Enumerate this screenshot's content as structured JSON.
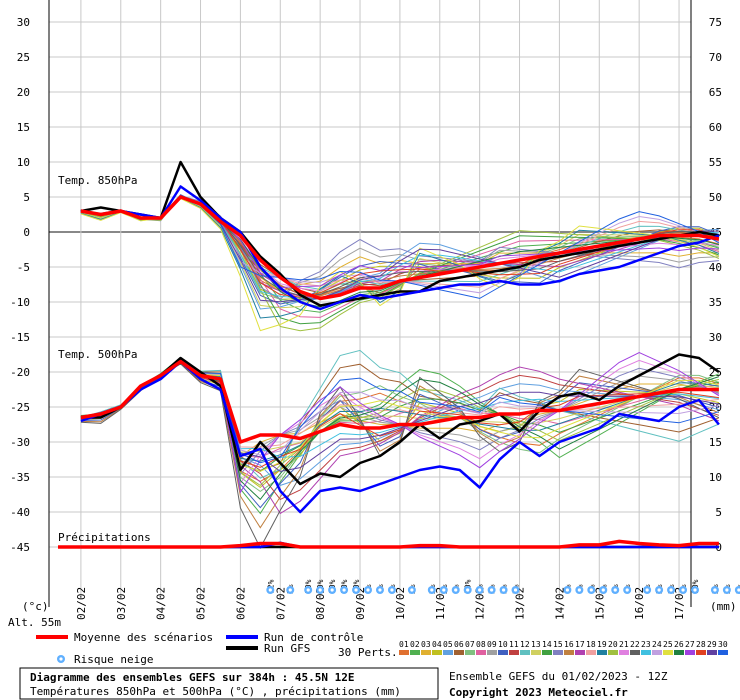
{
  "chart_data": {
    "type": "line",
    "x": [
      "02/02",
      "03/02",
      "04/02",
      "05/02",
      "06/02",
      "07/02",
      "08/02",
      "09/02",
      "10/02",
      "11/02",
      "12/02",
      "13/02",
      "14/02",
      "15/02",
      "16/02",
      "17/02"
    ],
    "xlabel": "",
    "y_left_ticks": [
      30,
      25,
      20,
      15,
      10,
      5,
      0,
      -5,
      -10,
      -15,
      -20,
      -25,
      -30,
      -35,
      -40,
      -45
    ],
    "y_right_ticks": [
      75,
      70,
      65,
      60,
      55,
      50,
      45,
      40,
      35,
      30,
      25,
      20,
      15,
      10,
      5,
      0
    ],
    "left_unit": "(°c)",
    "right_unit": "(mm)",
    "altitude": "Alt. 55m",
    "ylim": [
      -45,
      30
    ],
    "ylim_right": [
      0,
      75
    ],
    "annotations": {
      "t850": "Temp. 850hPa",
      "t500": "Temp. 500hPa",
      "precip": "Précipitations"
    },
    "t850": {
      "x": [
        0,
        0.5,
        1,
        1.5,
        2,
        2.5,
        3,
        3.5,
        4,
        4.5,
        5,
        5.5,
        6,
        6.5,
        7,
        7.5,
        8,
        8.5,
        9,
        9.5,
        10,
        10.5,
        11,
        11.5,
        12,
        12.5,
        13,
        13.5,
        14,
        14.5,
        15,
        15.5,
        16
      ],
      "mean": [
        3.0,
        2.5,
        3.0,
        2.0,
        2.0,
        5.0,
        4.0,
        1.5,
        -0.5,
        -4.0,
        -6.5,
        -8.5,
        -9.5,
        -9.0,
        -8.0,
        -8.0,
        -7.0,
        -6.5,
        -6.0,
        -5.5,
        -5.0,
        -4.5,
        -4.0,
        -3.5,
        -3.0,
        -2.5,
        -2.0,
        -1.5,
        -1.0,
        -0.5,
        -0.5,
        -0.5,
        -1.0
      ],
      "control": [
        3.0,
        2.5,
        3.0,
        2.5,
        2.0,
        6.5,
        4.5,
        2.0,
        0.0,
        -5.0,
        -8.0,
        -10.0,
        -11.0,
        -10.0,
        -9.0,
        -9.5,
        -9.0,
        -8.5,
        -8.0,
        -7.5,
        -7.5,
        -7.0,
        -7.5,
        -7.5,
        -7.0,
        -6.0,
        -5.5,
        -5.0,
        -4.0,
        -3.0,
        -2.0,
        -1.5,
        -0.5
      ],
      "gfs": [
        3.0,
        3.5,
        3.0,
        2.5,
        2.0,
        10.0,
        5.0,
        2.0,
        0.0,
        -3.5,
        -6.0,
        -9.0,
        -10.5,
        -10.0,
        -9.5,
        -9.0,
        -8.5,
        -8.5,
        -7.0,
        -6.5,
        -6.0,
        -5.5,
        -5.0,
        -4.0,
        -3.5,
        -3.0,
        -2.5,
        -2.0,
        -1.5,
        -1.0,
        -0.5,
        0.0,
        -0.5
      ]
    },
    "t500": {
      "x": [
        0,
        0.5,
        1,
        1.5,
        2,
        2.5,
        3,
        3.5,
        4,
        4.5,
        5,
        5.5,
        6,
        6.5,
        7,
        7.5,
        8,
        8.5,
        9,
        9.5,
        10,
        10.5,
        11,
        11.5,
        12,
        12.5,
        13,
        13.5,
        14,
        14.5,
        15,
        15.5,
        16
      ],
      "mean": [
        -26.5,
        -26.0,
        -25.0,
        -22.0,
        -20.5,
        -18.5,
        -20.5,
        -21.0,
        -30.0,
        -29.0,
        -29.0,
        -29.5,
        -28.5,
        -27.5,
        -28.0,
        -28.0,
        -27.5,
        -27.5,
        -27.0,
        -26.5,
        -26.5,
        -26.0,
        -26.0,
        -25.5,
        -25.5,
        -25.0,
        -24.5,
        -24.0,
        -23.5,
        -23.0,
        -22.5,
        -22.5,
        -22.5
      ],
      "control": [
        -27.0,
        -26.0,
        -25.0,
        -22.5,
        -21.0,
        -18.5,
        -21.0,
        -22.5,
        -32.0,
        -31.0,
        -37.0,
        -40.0,
        -37.0,
        -36.5,
        -37.0,
        -36.0,
        -35.0,
        -34.0,
        -33.5,
        -34.0,
        -36.5,
        -32.5,
        -30.0,
        -32.0,
        -30.0,
        -29.0,
        -28.0,
        -26.0,
        -26.5,
        -27.0,
        -25.0,
        -24.0,
        -27.5
      ],
      "gfs": [
        -26.5,
        -26.5,
        -25.0,
        -22.0,
        -20.5,
        -18.0,
        -20.0,
        -22.0,
        -34.0,
        -30.0,
        -33.0,
        -36.0,
        -34.5,
        -35.0,
        -33.0,
        -32.0,
        -30.0,
        -27.5,
        -29.5,
        -27.5,
        -27.0,
        -26.0,
        -28.5,
        -25.5,
        -23.5,
        -23.0,
        -24.0,
        -22.0,
        -20.5,
        -19.0,
        -17.5,
        -18.0,
        -20.0
      ]
    },
    "precip": {
      "mean": [
        0,
        0,
        0,
        0,
        0,
        0,
        0,
        0,
        0.2,
        0.5,
        0.5,
        0,
        0,
        0,
        0,
        0,
        0,
        0.2,
        0.2,
        0,
        0,
        0,
        0,
        0,
        0,
        0.3,
        0.3,
        0.8,
        0.5,
        0.3,
        0.2,
        0.5,
        0.5
      ],
      "control": [
        0,
        0,
        0,
        0,
        0,
        0,
        0,
        0,
        0,
        0,
        0.6,
        0,
        0,
        0,
        0,
        0,
        0,
        0,
        0,
        0,
        0,
        0,
        0,
        0,
        0,
        0,
        0,
        0,
        0,
        0,
        0,
        0,
        0
      ],
      "gfs": [
        0,
        0,
        0,
        0,
        0,
        0,
        0,
        0,
        0,
        0,
        0,
        0,
        0,
        0,
        0,
        0,
        0,
        0,
        0,
        0,
        0,
        0,
        0,
        0,
        0,
        0,
        0,
        0,
        0,
        0,
        0,
        0,
        0
      ]
    },
    "snow_risk": [
      {
        "x": 4.75,
        "pct": "12%"
      },
      {
        "x": 5.25,
        "pct": "3%"
      },
      {
        "x": 5.7,
        "pct": "10%"
      },
      {
        "x": 6.0,
        "pct": "10%"
      },
      {
        "x": 6.3,
        "pct": "10%"
      },
      {
        "x": 6.6,
        "pct": "10%"
      },
      {
        "x": 6.9,
        "pct": "10%"
      },
      {
        "x": 7.2,
        "pct": "6%"
      },
      {
        "x": 7.5,
        "pct": "6%"
      },
      {
        "x": 7.8,
        "pct": "6%"
      },
      {
        "x": 8.3,
        "pct": "3%"
      },
      {
        "x": 8.8,
        "pct": "3%"
      },
      {
        "x": 9.1,
        "pct": "3%"
      },
      {
        "x": 9.4,
        "pct": "6%"
      },
      {
        "x": 9.7,
        "pct": "10%"
      },
      {
        "x": 10.0,
        "pct": "6%"
      },
      {
        "x": 10.3,
        "pct": "3%"
      },
      {
        "x": 10.6,
        "pct": "3%"
      },
      {
        "x": 10.9,
        "pct": "3%"
      },
      {
        "x": 12.2,
        "pct": "6%"
      },
      {
        "x": 12.5,
        "pct": "6%"
      },
      {
        "x": 12.8,
        "pct": "6%"
      },
      {
        "x": 13.1,
        "pct": "6%"
      },
      {
        "x": 13.4,
        "pct": "6%"
      },
      {
        "x": 13.7,
        "pct": "6%"
      },
      {
        "x": 14.2,
        "pct": "6%"
      },
      {
        "x": 14.5,
        "pct": "3%"
      },
      {
        "x": 14.8,
        "pct": "3%"
      },
      {
        "x": 15.1,
        "pct": "6%"
      },
      {
        "x": 15.4,
        "pct": "10%"
      },
      {
        "x": 15.9,
        "pct": "3%"
      },
      {
        "x": 16.2,
        "pct": "3%"
      },
      {
        "x": 16.5,
        "pct": "3%"
      }
    ],
    "legend": {
      "mean": "Moyenne des scénarios",
      "control": "Run de contrôle",
      "gfs": "Run GFS",
      "snow": "Risque neige",
      "perts_label": "30 Perts."
    },
    "pert_labels": [
      "01",
      "02",
      "03",
      "04",
      "05",
      "06",
      "07",
      "08",
      "09",
      "10",
      "11",
      "12",
      "13",
      "14",
      "15",
      "16",
      "17",
      "18",
      "19",
      "20",
      "21",
      "22",
      "23",
      "24",
      "25",
      "26",
      "27",
      "28",
      "29",
      "30"
    ],
    "pert_colors": [
      "#e07030",
      "#50b050",
      "#e0b030",
      "#c0c020",
      "#60a0e0",
      "#a06030",
      "#80c080",
      "#e060a0",
      "#a0a0a0",
      "#4060c0",
      "#c04040",
      "#60c0c0",
      "#d0d060",
      "#40a040",
      "#8080c0",
      "#c08040",
      "#b040b0",
      "#f0a0a0",
      "#2080a0",
      "#a0c040",
      "#e080e0",
      "#606060",
      "#40c0e0",
      "#c0a0e0",
      "#e0e040",
      "#208040",
      "#a040e0",
      "#e04020",
      "#6040a0",
      "#2060e0"
    ],
    "colors": {
      "mean": "#ff0000",
      "control": "#0000ff",
      "gfs": "#000000"
    },
    "title": "Diagramme des ensembles GEFS sur 384h : 45.5N 12E",
    "subtitle": "Températures 850hPa et 500hPa (°C) , précipitations (mm)",
    "run_info": "Ensemble GEFS du 01/02/2023 - 12Z",
    "copyright": "Copyright 2023 Meteociel.fr"
  }
}
